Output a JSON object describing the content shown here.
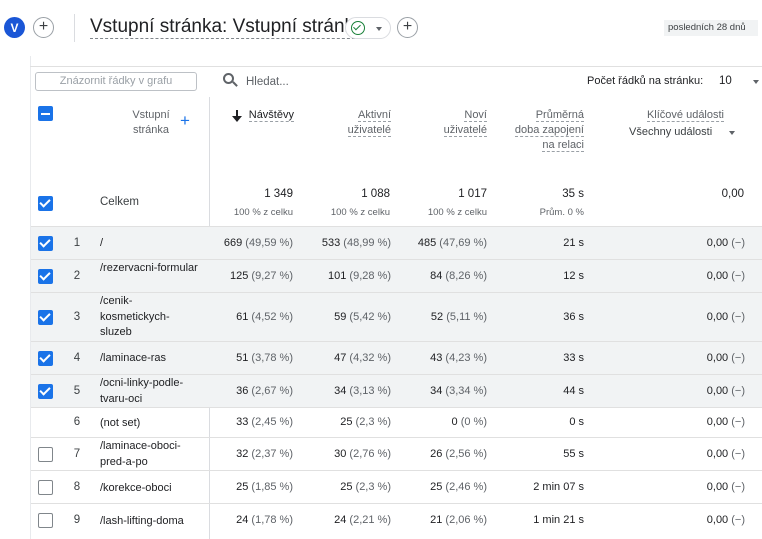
{
  "header": {
    "segment_letter": "V",
    "title": "Vstupní stránka: Vstupní stránka",
    "date_range": "posledních 28 dnů"
  },
  "toolbar": {
    "chart_filter_label": "Znázornit řádky v grafu",
    "search_placeholder": "Hledat...",
    "rows_per_page_label": "Počet řádků na stránku:",
    "rows_per_page_value": "10"
  },
  "table": {
    "dimension_header": "Vstupní stránka",
    "columns": [
      {
        "label": "Návštěvy"
      },
      {
        "label": "Aktivní uživatelé"
      },
      {
        "label": "Noví uživatelé"
      },
      {
        "label": "Průměrná doba zapojení na relaci"
      },
      {
        "label": "Klíčové události",
        "dropdown": "Všechny události"
      }
    ],
    "totals": {
      "label": "Celkem",
      "sessions": "1 349",
      "sessions_sub": "100 % z celku",
      "active": "1 088",
      "active_sub": "100 % z celku",
      "new": "1 017",
      "new_sub": "100 % z celku",
      "engagement": "35 s",
      "engagement_sub": "Prům. 0 %",
      "key_events": "0,00"
    },
    "rows": [
      {
        "num": "1",
        "page": "/",
        "checked": true,
        "sessions": "669",
        "sessions_pct": "(49,59 %)",
        "active": "533",
        "active_pct": "(48,99 %)",
        "new": "485",
        "new_pct": "(47,69 %)",
        "engagement": "21 s",
        "key_events": "0,00",
        "key_events_pct": "(−)"
      },
      {
        "num": "2",
        "page": "/rezervacni-formular",
        "checked": true,
        "sessions": "125",
        "sessions_pct": "(9,27 %)",
        "active": "101",
        "active_pct": "(9,28 %)",
        "new": "84",
        "new_pct": "(8,26 %)",
        "engagement": "12 s",
        "key_events": "0,00",
        "key_events_pct": "(−)"
      },
      {
        "num": "3",
        "page": "/cenik-kosmetickych-sluzeb",
        "checked": true,
        "sessions": "61",
        "sessions_pct": "(4,52 %)",
        "active": "59",
        "active_pct": "(5,42 %)",
        "new": "52",
        "new_pct": "(5,11 %)",
        "engagement": "36 s",
        "key_events": "0,00",
        "key_events_pct": "(−)"
      },
      {
        "num": "4",
        "page": "/laminace-ras",
        "checked": true,
        "sessions": "51",
        "sessions_pct": "(3,78 %)",
        "active": "47",
        "active_pct": "(4,32 %)",
        "new": "43",
        "new_pct": "(4,23 %)",
        "engagement": "33 s",
        "key_events": "0,00",
        "key_events_pct": "(−)"
      },
      {
        "num": "5",
        "page": "/ocni-linky-podle-tvaru-oci",
        "checked": true,
        "sessions": "36",
        "sessions_pct": "(2,67 %)",
        "active": "34",
        "active_pct": "(3,13 %)",
        "new": "34",
        "new_pct": "(3,34 %)",
        "engagement": "44 s",
        "key_events": "0,00",
        "key_events_pct": "(−)"
      },
      {
        "num": "6",
        "page": "(not set)",
        "checked": null,
        "sessions": "33",
        "sessions_pct": "(2,45 %)",
        "active": "25",
        "active_pct": "(2,3 %)",
        "new": "0",
        "new_pct": "(0 %)",
        "engagement": "0 s",
        "key_events": "0,00",
        "key_events_pct": "(−)"
      },
      {
        "num": "7",
        "page": "/laminace-oboci-pred-a-po",
        "checked": false,
        "sessions": "32",
        "sessions_pct": "(2,37 %)",
        "active": "30",
        "active_pct": "(2,76 %)",
        "new": "26",
        "new_pct": "(2,56 %)",
        "engagement": "55 s",
        "key_events": "0,00",
        "key_events_pct": "(−)"
      },
      {
        "num": "8",
        "page": "/korekce-oboci",
        "checked": false,
        "sessions": "25",
        "sessions_pct": "(1,85 %)",
        "active": "25",
        "active_pct": "(2,3 %)",
        "new": "25",
        "new_pct": "(2,46 %)",
        "engagement": "2 min 07 s",
        "key_events": "0,00",
        "key_events_pct": "(−)"
      },
      {
        "num": "9",
        "page": "/lash-lifting-doma",
        "checked": false,
        "sessions": "24",
        "sessions_pct": "(1,78 %)",
        "active": "24",
        "active_pct": "(2,21 %)",
        "new": "21",
        "new_pct": "(2,06 %)",
        "engagement": "1 min 21 s",
        "key_events": "0,00",
        "key_events_pct": "(−)"
      }
    ]
  }
}
